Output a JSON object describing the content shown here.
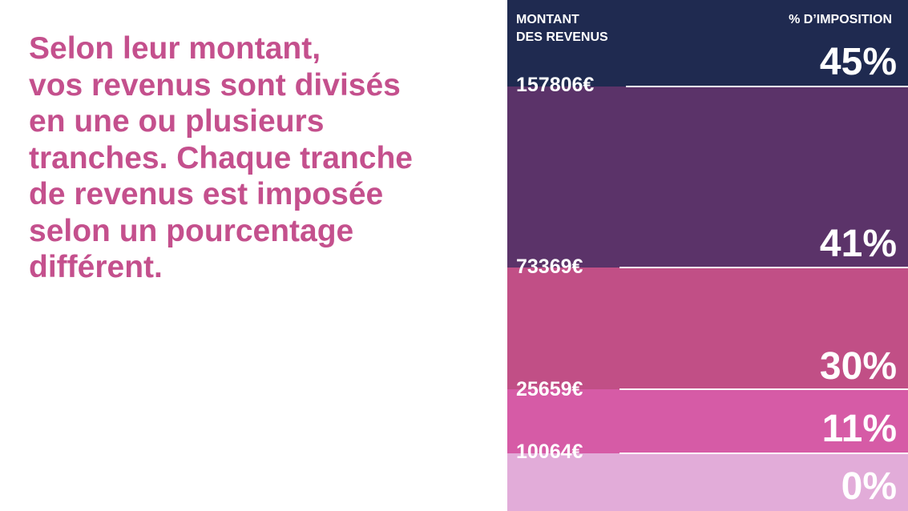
{
  "intro_text": "Selon leur montant,\nvos revenus sont divisés\nen une ou plusieurs\ntranches. Chaque tranche\nde revenus est imposée\nselon un pourcentage\ndifférent.",
  "scale": {
    "income_header": "MONTANT\nDES REVENUS",
    "rate_header": "% D’IMPOSITION",
    "rates": {
      "top": "45%",
      "second": "41%",
      "third": "30%",
      "fourth": "11%",
      "bottom": "0%"
    },
    "thresholds": {
      "t1": "157806€",
      "t2": "73369€",
      "t3": "25659€",
      "t4": "10064€"
    },
    "colors": {
      "rate_45": "#1f2a50",
      "rate_41": "#5b3369",
      "rate_30": "#c14f86",
      "rate_11": "#d65ba6",
      "rate_0": "#e2acd9",
      "intro_text": "#c4508d"
    }
  }
}
